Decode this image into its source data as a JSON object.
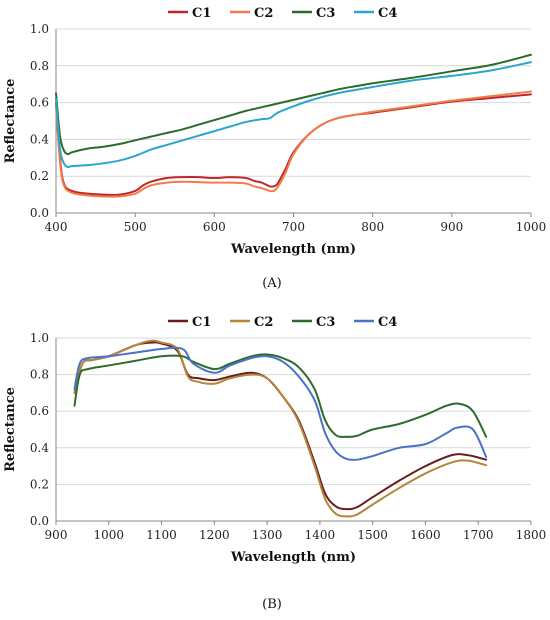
{
  "chart_data": [
    {
      "panel_label": "(A)",
      "type": "line",
      "xlabel": "Wavelength (nm)",
      "ylabel": "Reflectance",
      "xlim": [
        400,
        1000
      ],
      "ylim": [
        0,
        1.0
      ],
      "xticks": [
        400,
        500,
        600,
        700,
        800,
        900,
        1000
      ],
      "yticks": [
        0.0,
        0.2,
        0.4,
        0.6,
        0.8,
        1.0
      ],
      "ytick_labels": [
        "0.0",
        "0.2",
        "0.4",
        "0.6",
        "0.8",
        "1.0"
      ],
      "grid": "horizontal",
      "legend_position": "top-center",
      "series": [
        {
          "name": "C1",
          "color": "#c0282d",
          "x": [
            400,
            405,
            410,
            420,
            440,
            460,
            480,
            500,
            510,
            520,
            540,
            560,
            580,
            600,
            620,
            640,
            650,
            660,
            670,
            675,
            680,
            690,
            700,
            720,
            740,
            760,
            780,
            800,
            850,
            900,
            950,
            1000
          ],
          "y": [
            0.6,
            0.3,
            0.16,
            0.12,
            0.105,
            0.1,
            0.1,
            0.12,
            0.15,
            0.17,
            0.19,
            0.195,
            0.195,
            0.19,
            0.195,
            0.19,
            0.175,
            0.165,
            0.145,
            0.145,
            0.16,
            0.24,
            0.33,
            0.43,
            0.49,
            0.52,
            0.535,
            0.545,
            0.575,
            0.605,
            0.625,
            0.645
          ]
        },
        {
          "name": "C2",
          "color": "#f07c4a",
          "x": [
            400,
            405,
            410,
            420,
            440,
            460,
            480,
            500,
            510,
            520,
            540,
            560,
            580,
            600,
            620,
            640,
            650,
            660,
            670,
            675,
            680,
            690,
            700,
            720,
            740,
            760,
            780,
            800,
            850,
            900,
            950,
            1000
          ],
          "y": [
            0.58,
            0.28,
            0.15,
            0.11,
            0.095,
            0.09,
            0.09,
            0.105,
            0.13,
            0.15,
            0.165,
            0.17,
            0.168,
            0.165,
            0.165,
            0.16,
            0.145,
            0.135,
            0.12,
            0.12,
            0.14,
            0.22,
            0.32,
            0.43,
            0.49,
            0.52,
            0.535,
            0.55,
            0.58,
            0.61,
            0.635,
            0.66
          ]
        },
        {
          "name": "C3",
          "color": "#2e6b2a",
          "x": [
            400,
            405,
            410,
            415,
            420,
            440,
            460,
            480,
            500,
            520,
            540,
            560,
            580,
            600,
            620,
            640,
            660,
            680,
            700,
            720,
            740,
            760,
            780,
            800,
            850,
            900,
            950,
            1000
          ],
          "y": [
            0.65,
            0.42,
            0.34,
            0.32,
            0.33,
            0.35,
            0.36,
            0.375,
            0.395,
            0.415,
            0.435,
            0.455,
            0.48,
            0.505,
            0.53,
            0.555,
            0.575,
            0.595,
            0.615,
            0.635,
            0.655,
            0.675,
            0.69,
            0.705,
            0.735,
            0.77,
            0.805,
            0.86
          ]
        },
        {
          "name": "C4",
          "color": "#2aa6cf",
          "x": [
            400,
            405,
            410,
            415,
            420,
            440,
            460,
            480,
            500,
            520,
            540,
            560,
            580,
            600,
            620,
            640,
            660,
            670,
            680,
            700,
            720,
            740,
            760,
            780,
            800,
            850,
            900,
            950,
            1000
          ],
          "y": [
            0.62,
            0.35,
            0.27,
            0.25,
            0.255,
            0.26,
            0.27,
            0.285,
            0.31,
            0.345,
            0.37,
            0.395,
            0.42,
            0.445,
            0.47,
            0.495,
            0.51,
            0.515,
            0.545,
            0.58,
            0.61,
            0.635,
            0.655,
            0.67,
            0.685,
            0.72,
            0.745,
            0.775,
            0.82
          ]
        }
      ]
    },
    {
      "panel_label": "(B)",
      "type": "line",
      "xlabel": "Wavelength (nm)",
      "ylabel": "Reflectance",
      "xlim": [
        900,
        1800
      ],
      "ylim": [
        0,
        1.0
      ],
      "xticks": [
        900,
        1000,
        1100,
        1200,
        1300,
        1400,
        1500,
        1600,
        1700,
        1800
      ],
      "yticks": [
        0.0,
        0.2,
        0.4,
        0.6,
        0.8,
        1.0
      ],
      "ytick_labels": [
        "0.0",
        "0.2",
        "0.4",
        "0.6",
        "0.8",
        "1.0"
      ],
      "grid": "horizontal",
      "legend_position": "top-center",
      "series": [
        {
          "name": "C1",
          "color": "#6b1d1d",
          "x": [
            935,
            950,
            970,
            1000,
            1050,
            1080,
            1100,
            1130,
            1150,
            1170,
            1200,
            1230,
            1270,
            1300,
            1330,
            1360,
            1390,
            1410,
            1430,
            1450,
            1470,
            1500,
            1550,
            1600,
            1650,
            1680,
            1715
          ],
          "y": [
            0.7,
            0.86,
            0.88,
            0.9,
            0.96,
            0.975,
            0.97,
            0.93,
            0.8,
            0.78,
            0.77,
            0.79,
            0.81,
            0.78,
            0.68,
            0.55,
            0.32,
            0.15,
            0.08,
            0.065,
            0.075,
            0.13,
            0.22,
            0.3,
            0.36,
            0.36,
            0.335
          ]
        },
        {
          "name": "C2",
          "color": "#b5853b",
          "x": [
            935,
            950,
            970,
            1000,
            1050,
            1080,
            1100,
            1130,
            1150,
            1170,
            1200,
            1230,
            1270,
            1300,
            1330,
            1360,
            1390,
            1410,
            1430,
            1450,
            1470,
            1500,
            1550,
            1600,
            1650,
            1680,
            1715
          ],
          "y": [
            0.7,
            0.86,
            0.88,
            0.9,
            0.96,
            0.985,
            0.975,
            0.94,
            0.79,
            0.76,
            0.75,
            0.78,
            0.8,
            0.78,
            0.68,
            0.54,
            0.3,
            0.12,
            0.04,
            0.025,
            0.035,
            0.09,
            0.18,
            0.26,
            0.32,
            0.33,
            0.305
          ]
        },
        {
          "name": "C3",
          "color": "#2e6b2a",
          "x": [
            935,
            945,
            960,
            1000,
            1050,
            1100,
            1140,
            1160,
            1200,
            1230,
            1270,
            1300,
            1330,
            1360,
            1390,
            1410,
            1430,
            1450,
            1470,
            1500,
            1550,
            1600,
            1640,
            1665,
            1690,
            1715
          ],
          "y": [
            0.63,
            0.8,
            0.83,
            0.85,
            0.875,
            0.9,
            0.9,
            0.87,
            0.83,
            0.86,
            0.9,
            0.91,
            0.89,
            0.84,
            0.72,
            0.55,
            0.47,
            0.46,
            0.465,
            0.5,
            0.53,
            0.58,
            0.63,
            0.64,
            0.6,
            0.46
          ]
        },
        {
          "name": "C4",
          "color": "#4a72c8",
          "x": [
            935,
            945,
            960,
            1000,
            1050,
            1100,
            1140,
            1160,
            1200,
            1230,
            1270,
            1300,
            1330,
            1360,
            1390,
            1410,
            1430,
            1450,
            1470,
            1500,
            1550,
            1600,
            1640,
            1660,
            1690,
            1715
          ],
          "y": [
            0.72,
            0.86,
            0.89,
            0.9,
            0.92,
            0.94,
            0.94,
            0.86,
            0.81,
            0.85,
            0.89,
            0.9,
            0.87,
            0.79,
            0.66,
            0.48,
            0.38,
            0.34,
            0.335,
            0.355,
            0.4,
            0.42,
            0.48,
            0.51,
            0.5,
            0.35
          ]
        }
      ]
    }
  ]
}
